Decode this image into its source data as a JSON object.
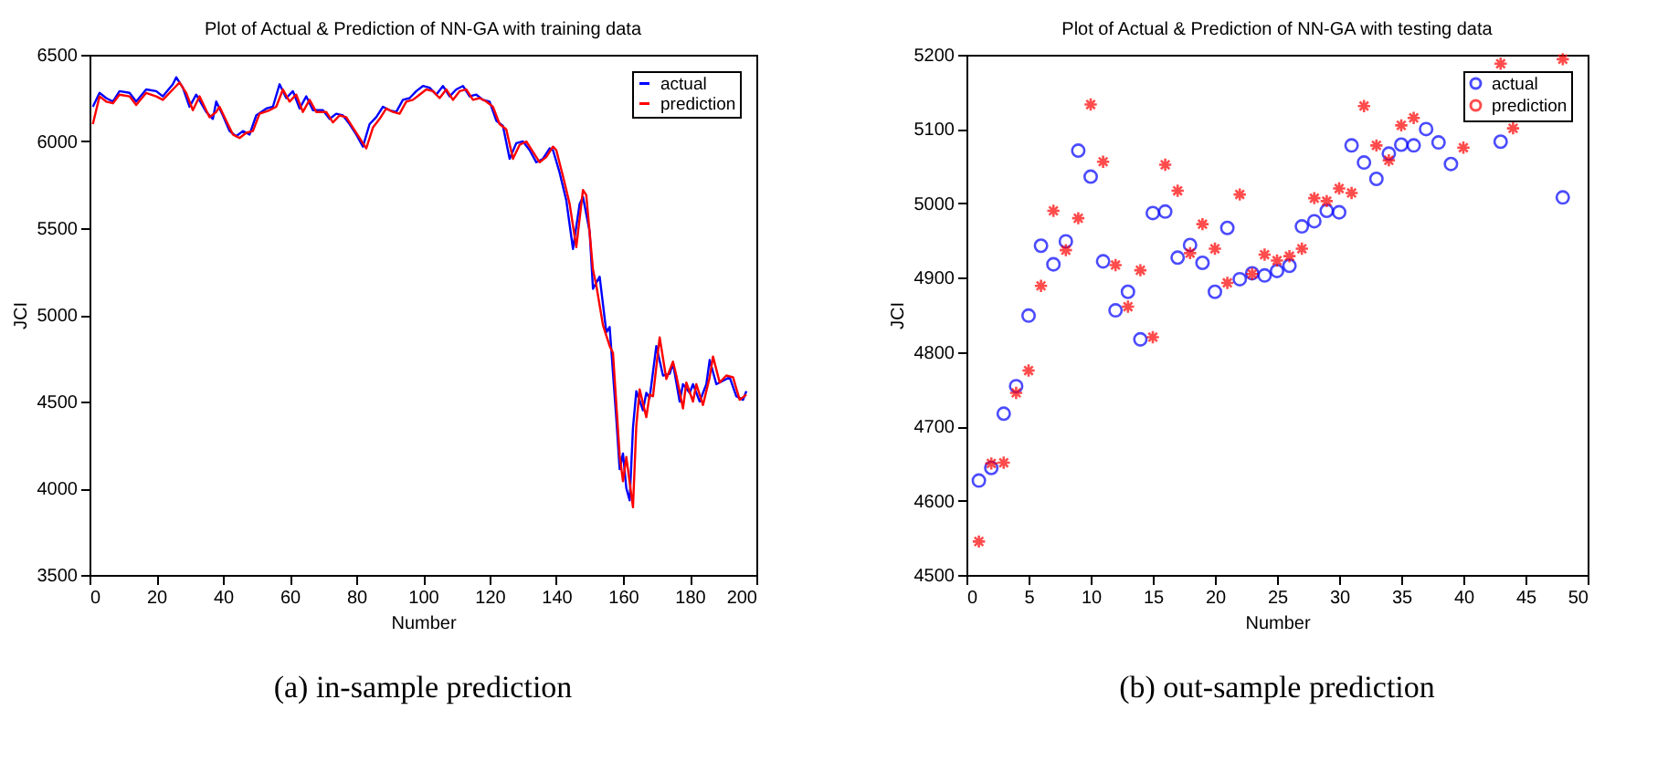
{
  "chart_data": [
    {
      "type": "line",
      "title": "Plot of Actual & Prediction of NN-GA with training data",
      "xlabel": "Number",
      "ylabel": "JCI",
      "xlim": [
        0,
        200
      ],
      "xticks": [
        0,
        20,
        40,
        60,
        80,
        100,
        120,
        140,
        160,
        180,
        200
      ],
      "ylim": [
        3500,
        6500
      ],
      "yticks": [
        3500,
        4000,
        4500,
        5000,
        5500,
        6000,
        6500
      ],
      "grid": false,
      "legend": "top right",
      "line_style": "solid",
      "annotations": [
        "(a)    in-sample prediction"
      ],
      "series": [
        {
          "name": "actual",
          "color": "#0000ff",
          "x": [
            1,
            3,
            5,
            7,
            9,
            12,
            14,
            17,
            20,
            22,
            25,
            26,
            28,
            30,
            32,
            35,
            37,
            38,
            40,
            42,
            44,
            46,
            48,
            50,
            53,
            55,
            57,
            59,
            61,
            63,
            65,
            67,
            70,
            72,
            74,
            76,
            78,
            80,
            82,
            84,
            86,
            88,
            90,
            92,
            94,
            96,
            98,
            100,
            102,
            104,
            106,
            108,
            110,
            112,
            114,
            116,
            118,
            120,
            122,
            124,
            126,
            128,
            130,
            132,
            134,
            136,
            138,
            139,
            141,
            143,
            145,
            147,
            148,
            150,
            151,
            153,
            155,
            156,
            158,
            159,
            160,
            161,
            162,
            163,
            164,
            166,
            167,
            168,
            170,
            172,
            174,
            175,
            177,
            178,
            180,
            181,
            183,
            185,
            186,
            188,
            190,
            192,
            194,
            196,
            197
          ],
          "values": [
            6200,
            6280,
            6250,
            6230,
            6290,
            6280,
            6230,
            6300,
            6290,
            6260,
            6330,
            6370,
            6310,
            6200,
            6270,
            6170,
            6130,
            6230,
            6150,
            6060,
            6030,
            6060,
            6040,
            6150,
            6190,
            6200,
            6330,
            6250,
            6290,
            6190,
            6260,
            6180,
            6180,
            6130,
            6160,
            6150,
            6100,
            6040,
            5970,
            6100,
            6140,
            6200,
            6180,
            6170,
            6240,
            6250,
            6290,
            6320,
            6310,
            6270,
            6320,
            6260,
            6300,
            6320,
            6260,
            6270,
            6240,
            6230,
            6120,
            6090,
            5900,
            5990,
            6000,
            5950,
            5880,
            5900,
            5960,
            5950,
            5820,
            5660,
            5380,
            5640,
            5680,
            5480,
            5150,
            5220,
            4900,
            4930,
            4400,
            4110,
            4200,
            4000,
            3930,
            4350,
            4560,
            4450,
            4550,
            4520,
            4820,
            4650,
            4660,
            4720,
            4500,
            4600,
            4550,
            4600,
            4500,
            4600,
            4740,
            4600,
            4620,
            4640,
            4530,
            4510,
            4560
          ]
        },
        {
          "name": "prediction",
          "color": "#ff0000",
          "x": [
            1,
            3,
            5,
            7,
            9,
            12,
            14,
            17,
            20,
            22,
            25,
            27,
            29,
            31,
            33,
            36,
            38,
            39,
            41,
            43,
            45,
            47,
            49,
            51,
            54,
            56,
            58,
            60,
            62,
            64,
            66,
            68,
            71,
            73,
            75,
            77,
            79,
            81,
            83,
            85,
            87,
            89,
            91,
            93,
            95,
            97,
            99,
            101,
            103,
            105,
            107,
            109,
            111,
            113,
            115,
            117,
            119,
            121,
            123,
            125,
            127,
            129,
            131,
            133,
            135,
            137,
            139,
            140,
            142,
            144,
            146,
            148,
            149,
            151,
            152,
            154,
            156,
            157,
            159,
            160,
            161,
            163,
            164,
            165,
            167,
            168,
            169,
            171,
            173,
            175,
            176,
            178,
            179,
            181,
            182,
            184,
            186,
            187,
            189,
            191,
            193,
            195,
            197
          ],
          "values": [
            6100,
            6260,
            6230,
            6220,
            6270,
            6260,
            6210,
            6280,
            6260,
            6240,
            6300,
            6340,
            6280,
            6180,
            6260,
            6140,
            6170,
            6200,
            6120,
            6040,
            6020,
            6050,
            6060,
            6160,
            6180,
            6200,
            6300,
            6230,
            6270,
            6170,
            6240,
            6170,
            6170,
            6110,
            6150,
            6140,
            6080,
            6020,
            5960,
            6080,
            6130,
            6190,
            6170,
            6160,
            6230,
            6240,
            6270,
            6300,
            6290,
            6250,
            6300,
            6240,
            6290,
            6300,
            6240,
            6250,
            6230,
            6200,
            6100,
            6070,
            5900,
            5980,
            6000,
            5940,
            5880,
            5910,
            5970,
            5950,
            5800,
            5640,
            5390,
            5720,
            5690,
            5260,
            5170,
            4940,
            4820,
            4780,
            4190,
            4040,
            4180,
            3890,
            4360,
            4570,
            4410,
            4540,
            4530,
            4870,
            4630,
            4730,
            4650,
            4460,
            4610,
            4500,
            4600,
            4480,
            4640,
            4760,
            4610,
            4650,
            4640,
            4510,
            4540
          ]
        }
      ]
    },
    {
      "type": "scatter",
      "title": "Plot of Actual & Prediction of NN-GA with testing data",
      "xlabel": "Number",
      "ylabel": "JCI",
      "xlim": [
        0,
        50
      ],
      "xticks": [
        0,
        5,
        10,
        15,
        20,
        25,
        30,
        35,
        40,
        45,
        50
      ],
      "ylim": [
        4500,
        5200
      ],
      "yticks": [
        4500,
        4600,
        4700,
        4800,
        4900,
        5000,
        5100,
        5200
      ],
      "grid": false,
      "legend": "top right",
      "annotations": [
        "(b)  out-sample prediction"
      ],
      "x": [
        1,
        2,
        3,
        4,
        5,
        6,
        7,
        8,
        9,
        10,
        11,
        12,
        13,
        14,
        15,
        16,
        17,
        18,
        19,
        20,
        21,
        22,
        23,
        24,
        25,
        26,
        27,
        28,
        29,
        30,
        31,
        32,
        33,
        34,
        35,
        36,
        37,
        38,
        39,
        40,
        41,
        42,
        43,
        44,
        45,
        46,
        47,
        48
      ],
      "series": [
        {
          "name": "actual",
          "color": "#0000ff",
          "marker": "circle",
          "values": [
            4627,
            4644,
            4717,
            4754,
            4849,
            4943,
            4918,
            4949,
            5071,
            5036,
            4922,
            4856,
            4881,
            4817,
            4987,
            4989,
            4927,
            4944,
            4920,
            4881,
            4967,
            4898,
            4906,
            4903,
            4909,
            4916,
            4969,
            4976,
            4990,
            4988,
            5078,
            5055,
            5033,
            5067,
            5079,
            5078,
            5100,
            5082,
            5053,
            null,
            null,
            null,
            5083,
            null,
            null,
            null,
            null,
            5008
          ]
        },
        {
          "name": "prediction",
          "color": "#ff0000",
          "marker": "cross",
          "values": [
            4545,
            4650,
            4651,
            4745,
            4775,
            4889,
            4990,
            4937,
            4980,
            5133,
            5056,
            4917,
            4861,
            4910,
            4820,
            5052,
            5017,
            4933,
            4972,
            4939,
            4893,
            5012,
            4905,
            4931,
            4923,
            4929,
            4939,
            5007,
            5003,
            5020,
            5014,
            5131,
            5078,
            5058,
            5105,
            5115,
            null,
            null,
            null,
            5075,
            null,
            null,
            5188,
            5101,
            null,
            null,
            null,
            5194
          ]
        }
      ]
    }
  ]
}
